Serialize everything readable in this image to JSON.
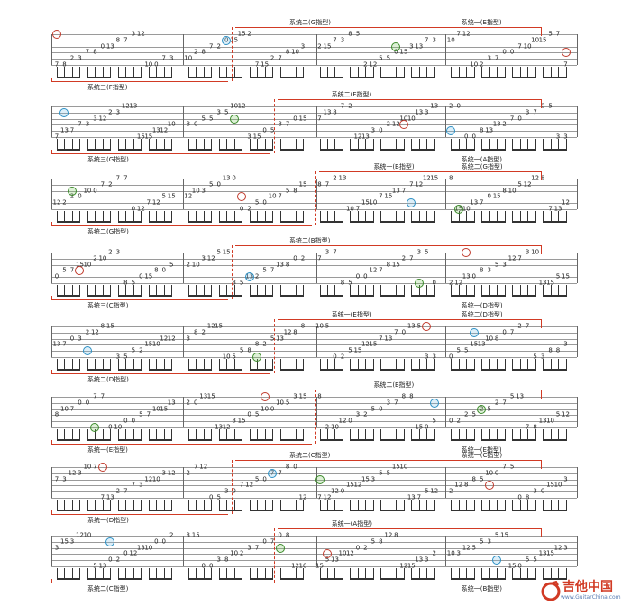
{
  "document": {
    "type": "guitar tablature sheet",
    "position_labels": [
      "系统三(F指型)",
      "系统二(G指型)",
      "系统一(E指型)",
      "系统三(G指型)",
      "系统二(F指型)",
      "系统一(A指型)",
      "系统二(G指型)",
      "系统一(B指型)",
      "系统二(G指型)",
      "系统三(C指型)",
      "系统二(B指型)",
      "系统一(D指型)",
      "系统二(D指型)",
      "系统一(E指型)",
      "系统二(D指型)",
      "系统一(E指型)",
      "系统二(E指型)",
      "系统一(E指型)",
      "系统一(D指型)",
      "系统二(C指型)",
      "系统一(C指型)",
      "系统二(C指型)",
      "系统一(A指型)",
      "系统一(B指型)",
      "系统二(B指型)",
      "系统一(A指型)",
      "系统一(G指型)",
      "系统二(A指型)",
      "系统二(G指型)",
      "系统一(F指型)",
      "系统二(F指型)"
    ]
  },
  "watermark": {
    "title": "吉他中国",
    "url": "www.GuitarChina.com",
    "accent_color": "#d13a24"
  },
  "colors": {
    "circle_red": "#c0392b",
    "circle_blue": "#2a8fc4",
    "circle_green": "#3b8a2a",
    "bracket": "#d13a24"
  }
}
